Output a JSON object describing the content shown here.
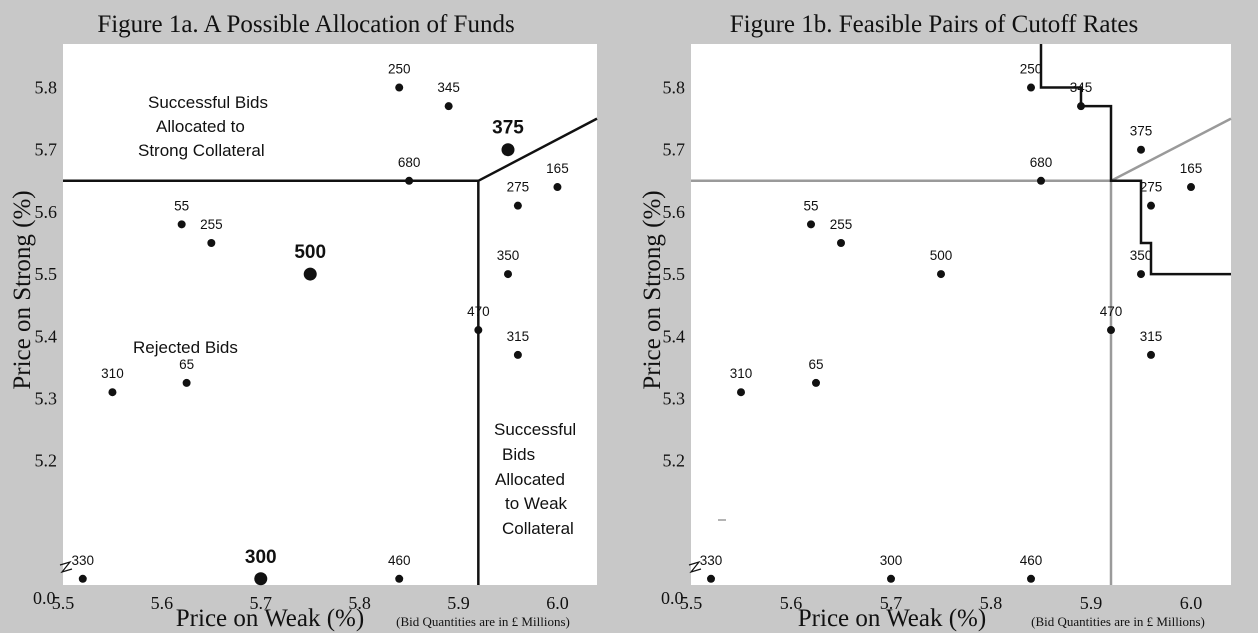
{
  "chart_data": [
    {
      "type": "scatter",
      "title": "Figure  1a. A Possible Allocation of Funds",
      "xlabel": "Price on Weak (%)",
      "ylabel": "Price on Strong (%)",
      "note": "(Bid Quantities are in £ Millions)",
      "xlim": [
        5.5,
        6.04
      ],
      "ylim": [
        5.0,
        5.87
      ],
      "x_ticks": [
        "5.5",
        "5.6",
        "5.7",
        "5.8",
        "5.9",
        "6.0"
      ],
      "y_ticks": [
        "5.2",
        "5.3",
        "5.4",
        "5.5",
        "5.6",
        "5.7",
        "5.8"
      ],
      "origin_label": "0.0",
      "legend": "none",
      "grid": false,
      "points": [
        {
          "x": 5.84,
          "y": 5.8,
          "label": "250",
          "big": false
        },
        {
          "x": 5.89,
          "y": 5.77,
          "label": "345",
          "big": false
        },
        {
          "x": 5.95,
          "y": 5.7,
          "label": "375",
          "big": true
        },
        {
          "x": 5.85,
          "y": 5.65,
          "label": "680",
          "big": false
        },
        {
          "x": 6.0,
          "y": 5.64,
          "label": "165",
          "big": false
        },
        {
          "x": 5.96,
          "y": 5.61,
          "label": "275",
          "big": false
        },
        {
          "x": 5.62,
          "y": 5.58,
          "label": "55",
          "big": false
        },
        {
          "x": 5.65,
          "y": 5.55,
          "label": "255",
          "big": false
        },
        {
          "x": 5.75,
          "y": 5.5,
          "label": "500",
          "big": true
        },
        {
          "x": 5.95,
          "y": 5.5,
          "label": "350",
          "big": false
        },
        {
          "x": 5.92,
          "y": 5.41,
          "label": "470",
          "big": false
        },
        {
          "x": 5.96,
          "y": 5.37,
          "label": "315",
          "big": false
        },
        {
          "x": 5.55,
          "y": 5.31,
          "label": "310",
          "big": false
        },
        {
          "x": 5.625,
          "y": 5.325,
          "label": "65",
          "big": false
        },
        {
          "x": 5.52,
          "y": 5.01,
          "label": "330",
          "big": false
        },
        {
          "x": 5.7,
          "y": 5.01,
          "label": "300",
          "big": true
        },
        {
          "x": 5.84,
          "y": 5.01,
          "label": "460",
          "big": false
        }
      ],
      "cutoff_lines": [
        {
          "color": "#111111",
          "points": [
            [
              5.5,
              5.65
            ],
            [
              5.92,
              5.65
            ],
            [
              6.04,
              5.75
            ]
          ]
        },
        {
          "color": "#111111",
          "points": [
            [
              5.92,
              5.65
            ],
            [
              5.92,
              5.0
            ]
          ]
        }
      ],
      "regions": [
        {
          "lines": [
            "Successful Bids",
            "Allocated to",
            "Strong Collateral"
          ]
        },
        {
          "lines": [
            "Rejected Bids"
          ]
        },
        {
          "lines": [
            "Successful",
            "Bids",
            "Allocated",
            "to Weak",
            "Collateral"
          ]
        }
      ]
    },
    {
      "type": "scatter",
      "title": "Figure 1b. Feasible Pairs of Cutoff Rates",
      "xlabel": "Price on Weak (%)",
      "ylabel": "Price on Strong (%)",
      "note": "(Bid Quantities are in £ Millions)",
      "xlim": [
        5.5,
        6.04
      ],
      "ylim": [
        5.0,
        5.87
      ],
      "x_ticks": [
        "5.5",
        "5.6",
        "5.7",
        "5.8",
        "5.9",
        "6.0"
      ],
      "y_ticks": [
        "5.2",
        "5.3",
        "5.4",
        "5.5",
        "5.6",
        "5.7",
        "5.8"
      ],
      "origin_label": "0.0",
      "legend": "none",
      "grid": false,
      "points": [
        {
          "x": 5.84,
          "y": 5.8,
          "label": "250"
        },
        {
          "x": 5.89,
          "y": 5.77,
          "label": "345"
        },
        {
          "x": 5.95,
          "y": 5.7,
          "label": "375"
        },
        {
          "x": 5.85,
          "y": 5.65,
          "label": "680"
        },
        {
          "x": 6.0,
          "y": 5.64,
          "label": "165"
        },
        {
          "x": 5.96,
          "y": 5.61,
          "label": "275"
        },
        {
          "x": 5.62,
          "y": 5.58,
          "label": "55"
        },
        {
          "x": 5.65,
          "y": 5.55,
          "label": "255"
        },
        {
          "x": 5.75,
          "y": 5.5,
          "label": "500"
        },
        {
          "x": 5.95,
          "y": 5.5,
          "label": "350"
        },
        {
          "x": 5.92,
          "y": 5.41,
          "label": "470"
        },
        {
          "x": 5.96,
          "y": 5.37,
          "label": "315"
        },
        {
          "x": 5.55,
          "y": 5.31,
          "label": "310"
        },
        {
          "x": 5.625,
          "y": 5.325,
          "label": "65"
        },
        {
          "x": 5.52,
          "y": 5.01,
          "label": "330"
        },
        {
          "x": 5.7,
          "y": 5.01,
          "label": "300"
        },
        {
          "x": 5.84,
          "y": 5.01,
          "label": "460"
        }
      ],
      "cutoff_lines": [
        {
          "color": "#9a9a9a",
          "points": [
            [
              5.5,
              5.65
            ],
            [
              5.92,
              5.65
            ],
            [
              6.04,
              5.75
            ]
          ]
        },
        {
          "color": "#9a9a9a",
          "points": [
            [
              5.92,
              5.65
            ],
            [
              5.92,
              5.0
            ]
          ]
        },
        {
          "color": "#111111",
          "points": [
            [
              5.85,
              5.87
            ],
            [
              5.85,
              5.8
            ],
            [
              5.89,
              5.8
            ],
            [
              5.89,
              5.77
            ],
            [
              5.92,
              5.77
            ],
            [
              5.92,
              5.65
            ],
            [
              5.95,
              5.65
            ],
            [
              5.95,
              5.55
            ],
            [
              5.96,
              5.55
            ],
            [
              5.96,
              5.5
            ],
            [
              6.04,
              5.5
            ]
          ]
        }
      ]
    }
  ]
}
